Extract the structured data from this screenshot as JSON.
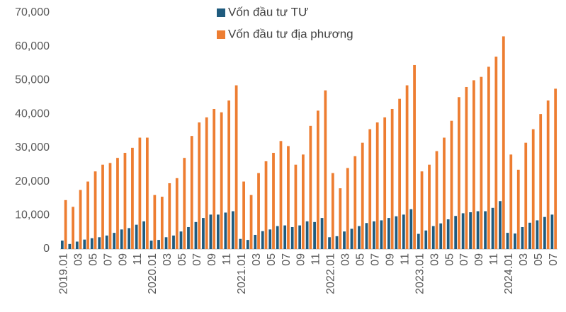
{
  "chart_data": {
    "type": "bar",
    "legend": "top",
    "categories": [
      "2019.01",
      null,
      "03",
      null,
      "05",
      null,
      "07",
      null,
      "09",
      null,
      "11",
      null,
      "2020.01",
      null,
      "03",
      null,
      "05",
      null,
      "07",
      null,
      "09",
      null,
      "11",
      null,
      "2021.01",
      null,
      "03",
      null,
      "05",
      null,
      "07",
      null,
      "09",
      null,
      "11",
      null,
      "2022.01",
      null,
      "03",
      null,
      "05",
      null,
      "07",
      null,
      "09",
      null,
      "11",
      null,
      "2023.01",
      null,
      "03",
      null,
      "05",
      null,
      "07",
      null,
      "09",
      null,
      "11",
      null,
      "2024.01",
      null,
      "03",
      null,
      "05",
      null,
      "07"
    ],
    "series": [
      {
        "name": "Vốn đầu tư TƯ",
        "color": "#1f5b7e",
        "values": [
          2500,
          1500,
          2200,
          2800,
          3200,
          3500,
          4000,
          4800,
          5800,
          6200,
          7200,
          8200,
          2500,
          2700,
          3500,
          4000,
          5200,
          6500,
          8000,
          9200,
          10200,
          10200,
          10800,
          11200,
          3000,
          2700,
          4200,
          5300,
          5800,
          6800,
          7000,
          6500,
          7000,
          8200,
          8000,
          9200,
          3500,
          3800,
          5200,
          6000,
          6800,
          7700,
          8200,
          8500,
          9200,
          9700,
          10200,
          11800,
          4500,
          5500,
          6800,
          7600,
          8800,
          9800,
          10600,
          10900,
          11200,
          11200,
          12200,
          14200,
          4800,
          4600,
          6500,
          7800,
          8500,
          9500,
          10200
        ]
      },
      {
        "name": "Vốn đầu tư địa phương",
        "color": "#ed7d31",
        "values": [
          14500,
          12500,
          17500,
          20000,
          23000,
          25000,
          25500,
          27000,
          28500,
          30000,
          33000,
          33000,
          16000,
          15500,
          19500,
          21000,
          27000,
          33500,
          37500,
          39000,
          41500,
          40500,
          44000,
          48500,
          20000,
          16000,
          22500,
          26000,
          28500,
          32000,
          30500,
          25000,
          28000,
          36500,
          41000,
          47000,
          22500,
          18000,
          24000,
          27500,
          31500,
          35500,
          37500,
          39000,
          41500,
          44500,
          48500,
          54500,
          23000,
          25000,
          29000,
          33000,
          38000,
          45000,
          48000,
          50000,
          51000,
          54000,
          57000,
          63000,
          28000,
          23500,
          31500,
          35500,
          40000,
          44000,
          47500
        ]
      }
    ],
    "ylim": [
      0,
      70000
    ],
    "yticks": [
      0,
      {
        "value": 10000,
        "label": "10,000"
      },
      {
        "value": 20000,
        "label": "20,000"
      },
      {
        "value": 30000,
        "label": "30,000"
      },
      {
        "value": 40000,
        "label": "40,000"
      },
      {
        "value": 50000,
        "label": "50,000"
      },
      {
        "value": 60000,
        "label": "60,000"
      },
      {
        "value": 70000,
        "label": "70,000"
      }
    ],
    "grid": false
  }
}
